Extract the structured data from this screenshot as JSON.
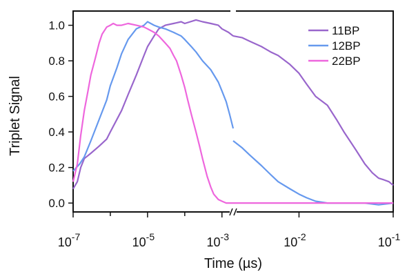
{
  "chart_data": {
    "type": "line",
    "xlabel": "Time (µs)",
    "ylabel": "Triplet Signal",
    "x_scale": "log-broken",
    "xlim": [
      1e-07,
      0.1
    ],
    "ylim": [
      -0.05,
      1.08
    ],
    "axis_break_at": 0.002,
    "x_ticks": [
      {
        "value": 1e-07,
        "base": "10",
        "exp": "-7"
      },
      {
        "value": 1e-05,
        "base": "10",
        "exp": "-5"
      },
      {
        "value": 0.001,
        "base": "10",
        "exp": "-3"
      },
      {
        "value": 0.01,
        "base": "10",
        "exp": "-2"
      },
      {
        "value": 0.1,
        "base": "10",
        "exp": "-1"
      }
    ],
    "y_ticks": [
      "0.0",
      "0.2",
      "0.4",
      "0.6",
      "0.8",
      "1.0"
    ],
    "legend_position": "top-right",
    "series": [
      {
        "name": "11BP",
        "color": "#9966cc",
        "segments": [
          {
            "x": [
              1e-07,
              1.3e-07,
              1.6e-07,
              2e-07,
              3e-07,
              5e-07,
              8e-07,
              1e-06,
              2e-06,
              3e-06,
              5e-06,
              8e-06,
              1e-05,
              1.5e-05,
              2e-05,
              3e-05,
              5e-05,
              8e-05,
              0.0001,
              0.0002,
              0.0003,
              0.0005,
              0.0008,
              0.001,
              0.0015,
              0.002
            ],
            "y": [
              0.08,
              0.12,
              0.2,
              0.25,
              0.28,
              0.32,
              0.36,
              0.4,
              0.52,
              0.61,
              0.72,
              0.83,
              0.88,
              0.94,
              0.98,
              1.0,
              1.01,
              1.02,
              1.01,
              1.03,
              1.02,
              1.01,
              1.0,
              0.98,
              0.96,
              0.94
            ]
          },
          {
            "x": [
              0.002,
              0.0025,
              0.003,
              0.004,
              0.005,
              0.006,
              0.008,
              0.01,
              0.012,
              0.015,
              0.02,
              0.025,
              0.03,
              0.04,
              0.05,
              0.06,
              0.07,
              0.08,
              0.09,
              0.1
            ],
            "y": [
              0.94,
              0.93,
              0.91,
              0.88,
              0.85,
              0.83,
              0.78,
              0.73,
              0.67,
              0.6,
              0.55,
              0.47,
              0.4,
              0.3,
              0.22,
              0.17,
              0.14,
              0.13,
              0.12,
              0.1
            ]
          }
        ]
      },
      {
        "name": "12BP",
        "color": "#6699ee",
        "segments": [
          {
            "x": [
              1e-07,
              1.5e-07,
              2e-07,
              3e-07,
              5e-07,
              8e-07,
              1e-06,
              1.5e-06,
              2e-06,
              3e-06,
              5e-06,
              8e-06,
              1e-05,
              1.5e-05,
              2e-05,
              3e-05,
              5e-05,
              8e-05,
              0.0001,
              0.00015,
              0.0002,
              0.0003,
              0.0005,
              0.0008,
              0.001,
              0.0013,
              0.0016,
              0.002
            ],
            "y": [
              0.18,
              0.22,
              0.26,
              0.35,
              0.47,
              0.58,
              0.66,
              0.76,
              0.84,
              0.92,
              0.98,
              1.0,
              1.02,
              1.0,
              0.99,
              0.98,
              0.96,
              0.94,
              0.92,
              0.88,
              0.85,
              0.8,
              0.75,
              0.68,
              0.63,
              0.57,
              0.5,
              0.42
            ]
          },
          {
            "x": [
              0.002,
              0.0025,
              0.003,
              0.004,
              0.005,
              0.006,
              0.008,
              0.01,
              0.012,
              0.015,
              0.02,
              0.03,
              0.05,
              0.07,
              0.1
            ],
            "y": [
              0.35,
              0.31,
              0.27,
              0.21,
              0.16,
              0.12,
              0.08,
              0.05,
              0.03,
              0.01,
              0.0,
              0.0,
              0.0,
              -0.01,
              0.0
            ]
          }
        ]
      },
      {
        "name": "22BP",
        "color": "#ee66dd",
        "segments": [
          {
            "x": [
              1e-07,
              1.3e-07,
              1.6e-07,
              2e-07,
              2.5e-07,
              3e-07,
              4e-07,
              5e-07,
              6e-07,
              8e-07,
              1e-06,
              1.2e-06,
              1.5e-06,
              2e-06,
              3e-06,
              5e-06,
              8e-06,
              1e-05,
              1.5e-05,
              2e-05,
              3e-05,
              4e-05,
              5e-05,
              6e-05,
              8e-05,
              0.0001,
              0.00012,
              0.00015,
              0.0002,
              0.00025,
              0.0003,
              0.0004,
              0.0005,
              0.0006,
              0.0008,
              0.001,
              0.0013,
              0.002
            ],
            "y": [
              0.12,
              0.22,
              0.38,
              0.52,
              0.63,
              0.72,
              0.82,
              0.9,
              0.95,
              0.99,
              1.0,
              1.01,
              1.0,
              1.0,
              1.01,
              1.0,
              0.99,
              0.98,
              0.96,
              0.94,
              0.9,
              0.87,
              0.83,
              0.8,
              0.72,
              0.65,
              0.58,
              0.5,
              0.4,
              0.32,
              0.25,
              0.15,
              0.09,
              0.05,
              0.02,
              0.01,
              0.0,
              0.0
            ]
          },
          {
            "x": [
              0.002,
              0.005,
              0.01,
              0.02,
              0.05,
              0.1
            ],
            "y": [
              0.0,
              0.0,
              0.0,
              0.0,
              0.0,
              0.0
            ]
          }
        ]
      }
    ]
  }
}
